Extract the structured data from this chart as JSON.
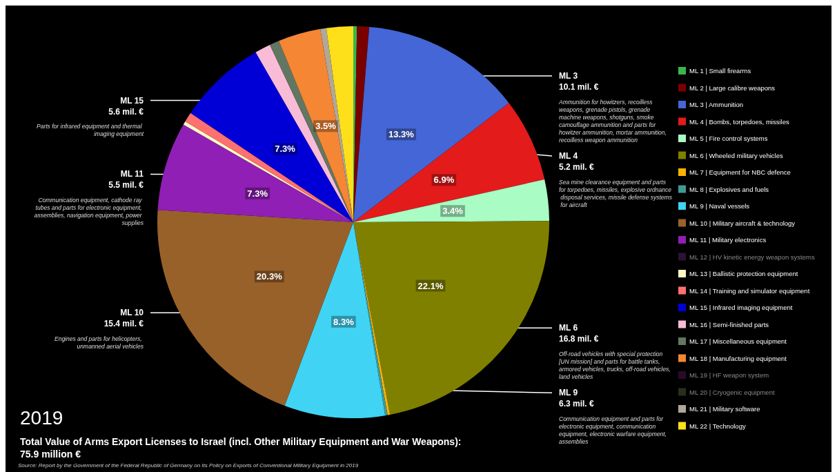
{
  "chart_data": {
    "type": "pie",
    "title": "2019",
    "subtitle": "Total Value of Arms Export Licenses to Israel (incl. Other Military Equipment and War Weapons):\n75.9 million €",
    "categories": [
      "ML 1 | Small firearms",
      "ML 2 | Large calibre weapons",
      "ML 3 | Ammunition",
      "ML 4 | Bombs, torpedoes, missiles",
      "ML 5 | Fire control systems",
      "ML 6 | Wheeled military vehicles",
      "ML 7 | Equipment for NBC defence",
      "ML 8 | Explosives and fuels",
      "ML 9 | Naval vessels",
      "ML 10 | Military aircraft & technology",
      "ML 11 | Military electronics",
      "ML 12 | HV kinetic energy weapon systems",
      "ML 13 | Ballistic protection equipment",
      "ML 14 | Training and simulator equipment",
      "ML 15 | Infrared imaging equipment",
      "ML 16 | Semi-finished parts",
      "ML 17 | Miscellaneous equipment",
      "ML 18 | Manufacturing equipment",
      "ML 19 | HF weapon system",
      "ML 20 | Cryogenic equipment",
      "ML 21 | Military software",
      "ML 22 | Technology"
    ],
    "values": [
      0.3,
      1.0,
      13.3,
      6.9,
      3.4,
      22.1,
      0.2,
      0.2,
      8.3,
      20.3,
      7.3,
      0,
      0.3,
      0.8,
      7.3,
      1.3,
      0.8,
      3.5,
      0,
      0,
      0.5,
      2.2
    ],
    "colors": [
      "#3cb54a",
      "#7a0000",
      "#4466d6",
      "#e31b1b",
      "#a8fcc4",
      "#808000",
      "#ffb300",
      "#3f9a94",
      "#40d3f4",
      "#99612a",
      "#8f1fb5",
      "#2c1236",
      "#fff8c6",
      "#ff7070",
      "#0000d6",
      "#f8bcd6",
      "#627762",
      "#f58634",
      "#2a0b2a",
      "#27301a",
      "#b0a898",
      "#fde01a"
    ],
    "value_labels": [
      null,
      null,
      "13.3%",
      "6.9%",
      "3.4%",
      "22.1%",
      null,
      null,
      "8.3%",
      "20.3%",
      "7.3%",
      null,
      null,
      null,
      "7.3%",
      null,
      null,
      "3.5%",
      null,
      null,
      null,
      null
    ],
    "legend": "right",
    "annotations": [
      {
        "text": "ML 3\n10.1 mil. €\nAmmunition for howitzers, recoilless weapons, grenade pistols, grenade machine weapons, shotguns, smoke camouflage ammunition and parts for howitzer ammunition, mortar ammunition, recoilless weapon ammunition",
        "x": "ML 3 | Ammunition"
      },
      {
        "text": "ML 4\n5.2 mil. €\nSea mine clearance equipment and parts for torpedoes, missiles, explosive ordnance disposal services, missile defense systems for aircraft",
        "x": "ML 4 | Bombs, torpedoes, missiles"
      },
      {
        "text": "ML 6\n16.8 mil. €\nOff-road vehicles with special protection [UN mission] and parts for battle tanks, armored vehicles, trucks, off-road vehicles, land vehicles",
        "x": "ML 6 | Wheeled military vehicles"
      },
      {
        "text": "ML 9\n6.3 mil. €\nCommunication equipment and parts for electronic equipment, communication equipment, electronic warfare equipment, assemblies",
        "x": "ML 9 | Naval vessels"
      },
      {
        "text": "ML 15\n5.6 mil. €\nParts for infrared equipment and thermal imaging equipment",
        "x": "ML 15 | Infrared imaging equipment"
      },
      {
        "text": "ML 11\n5.5 mil. €\nCommunication equipment, cathode ray tubes and parts for electronic equipment, assemblies, navigation equipment, power supplies",
        "x": "ML 11 | Military electronics"
      },
      {
        "text": "ML 10\n15.4 mil. €\nEngines and parts for helicopters, unmanned aerial vehicles",
        "x": "ML 10 | Military aircraft & technology"
      },
      "Source: Report by the Government of the Federal Republic of Germany on Its Policy on Exports of Conventional Military Equipment in 2019"
    ]
  }
}
